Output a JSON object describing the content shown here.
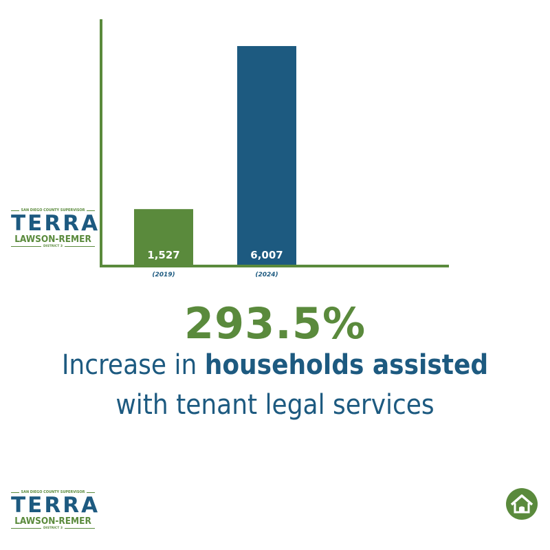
{
  "chart_data": {
    "type": "bar",
    "categories": [
      "(2019)",
      "(2024)"
    ],
    "values": [
      1527,
      6007
    ],
    "data_labels": [
      "1,527",
      "6,007"
    ],
    "bar_colors": [
      "#5a8a3c",
      "#1d5a80"
    ],
    "axis_color": "#5a8a3c",
    "ylim": [
      0,
      6800
    ],
    "grid": false,
    "title": "",
    "xlabel": "",
    "ylabel": ""
  },
  "logo": {
    "supervisor": "SAN DIEGO COUNTY SUPERVISOR",
    "first": "TERRA",
    "last": "LAWSON-REMER",
    "district": "DISTRICT 3"
  },
  "headline": {
    "percent": "293.5%",
    "line1_pre": "Increase in",
    "line1_bold": "households assisted",
    "line2": "with tenant legal services"
  },
  "colors": {
    "green": "#5a8a3c",
    "blue": "#1d5a80"
  },
  "icon": "house-icon"
}
